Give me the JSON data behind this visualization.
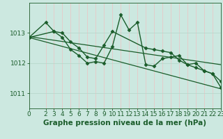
{
  "background_color": "#cce8e0",
  "plot_bg_color": "#cce8e0",
  "grid_color_v": "#e8c8c8",
  "grid_color_h": "#b8d8cc",
  "line_color": "#1a5c2a",
  "xlabel": "Graphe pression niveau de la mer (hPa)",
  "xlabel_fontsize": 7.5,
  "tick_fontsize": 6.5,
  "ylim": [
    1010.5,
    1014.0
  ],
  "xlim": [
    0,
    23
  ],
  "yticks": [
    1011,
    1012,
    1013
  ],
  "xticks": [
    0,
    2,
    3,
    4,
    5,
    6,
    7,
    8,
    9,
    10,
    11,
    12,
    13,
    14,
    15,
    16,
    17,
    18,
    19,
    20,
    21,
    22,
    23
  ],
  "series": [
    {
      "x": [
        0,
        2,
        3,
        4,
        5,
        6,
        7,
        8,
        9,
        10,
        11,
        12,
        13,
        14,
        15,
        16,
        17,
        18,
        19,
        20,
        21,
        22,
        23
      ],
      "y": [
        1012.85,
        1013.35,
        1013.05,
        1012.85,
        1012.45,
        1012.25,
        1012.0,
        1012.05,
        1012.0,
        1012.55,
        1013.6,
        1013.1,
        1013.35,
        1011.95,
        1011.9,
        1012.15,
        1012.2,
        1012.25,
        1011.95,
        1012.0,
        1011.75,
        1011.65,
        1011.4
      ],
      "marker": true,
      "linewidth": 1.0
    },
    {
      "x": [
        0,
        3,
        4,
        5,
        6,
        7,
        8,
        9,
        10,
        14,
        15,
        16,
        17,
        18,
        19,
        20,
        21,
        22,
        23
      ],
      "y": [
        1012.85,
        1013.05,
        1013.0,
        1012.7,
        1012.5,
        1012.2,
        1012.15,
        1012.6,
        1013.05,
        1012.5,
        1012.45,
        1012.4,
        1012.35,
        1012.1,
        1011.95,
        1011.85,
        1011.75,
        1011.65,
        1011.2
      ],
      "marker": true,
      "linewidth": 1.0
    },
    {
      "x": [
        0,
        23
      ],
      "y": [
        1012.88,
        1011.95
      ],
      "marker": false,
      "linewidth": 0.9
    },
    {
      "x": [
        0,
        23
      ],
      "y": [
        1012.85,
        1011.15
      ],
      "marker": false,
      "linewidth": 0.9
    }
  ]
}
